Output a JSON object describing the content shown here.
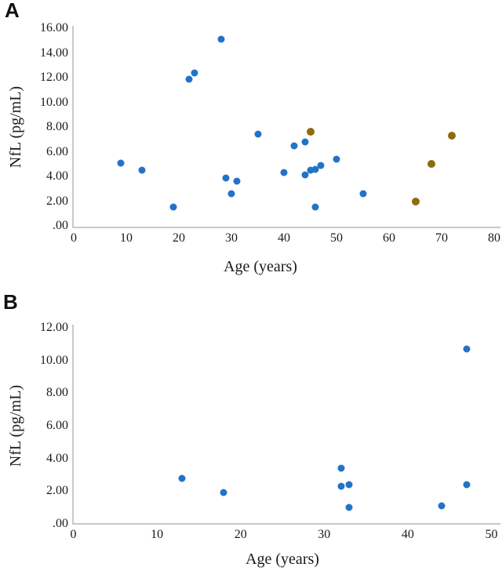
{
  "figure": {
    "background": "#ffffff",
    "panels": [
      {
        "letter": "A"
      },
      {
        "letter": "B"
      }
    ]
  },
  "chart_data": [
    {
      "type": "scatter",
      "panel_letter": "A",
      "title": "",
      "xlabel": "Age (years)",
      "ylabel": "NfL (pg/mL)",
      "xlim": [
        0,
        80
      ],
      "ylim": [
        0,
        16
      ],
      "grid": false,
      "legend_position": "none",
      "axis_color": "#c9c9c9",
      "x_ticks": [
        {
          "v": 0,
          "label": "0"
        },
        {
          "v": 10,
          "label": "10"
        },
        {
          "v": 20,
          "label": "20"
        },
        {
          "v": 30,
          "label": "30"
        },
        {
          "v": 40,
          "label": "40"
        },
        {
          "v": 50,
          "label": "50"
        },
        {
          "v": 60,
          "label": "60"
        },
        {
          "v": 70,
          "label": "70"
        },
        {
          "v": 80,
          "label": "80"
        }
      ],
      "y_ticks": [
        {
          "v": 0,
          "label": ".00"
        },
        {
          "v": 2,
          "label": "2.00"
        },
        {
          "v": 4,
          "label": "4.00"
        },
        {
          "v": 6,
          "label": "6.00"
        },
        {
          "v": 8,
          "label": "8.00"
        },
        {
          "v": 10,
          "label": "10.00"
        },
        {
          "v": 12,
          "label": "12.00"
        },
        {
          "v": 14,
          "label": "14.00"
        },
        {
          "v": 16,
          "label": "16.00"
        }
      ],
      "series": [
        {
          "name": "blue-circles",
          "color": "#2472C8",
          "points": [
            [
              9,
              5.1
            ],
            [
              13,
              4.5
            ],
            [
              19,
              1.5
            ],
            [
              22,
              11.9
            ],
            [
              23,
              12.4
            ],
            [
              28,
              15.1
            ],
            [
              29,
              3.9
            ],
            [
              30,
              2.6
            ],
            [
              31,
              3.6
            ],
            [
              35,
              7.4
            ],
            [
              40,
              4.3
            ],
            [
              42,
              6.5
            ],
            [
              44,
              6.8
            ],
            [
              44,
              4.1
            ],
            [
              45,
              4.5
            ],
            [
              46,
              4.6
            ],
            [
              47,
              4.9
            ],
            [
              50,
              5.4
            ],
            [
              46,
              1.5
            ],
            [
              55,
              2.6
            ]
          ]
        },
        {
          "name": "brown-circles",
          "color": "#8F6C10",
          "points": [
            [
              45,
              7.6
            ],
            [
              65,
              2.0
            ],
            [
              68,
              5.0
            ],
            [
              72,
              7.3
            ]
          ]
        }
      ]
    },
    {
      "type": "scatter",
      "panel_letter": "B",
      "title": "",
      "xlabel": "Age (years)",
      "ylabel": "NfL (pg/mL)",
      "xlim": [
        0,
        50
      ],
      "ylim": [
        0,
        12
      ],
      "grid": false,
      "legend_position": "none",
      "axis_color": "#c9c9c9",
      "x_ticks": [
        {
          "v": 0,
          "label": "0"
        },
        {
          "v": 10,
          "label": "10"
        },
        {
          "v": 20,
          "label": "20"
        },
        {
          "v": 30,
          "label": "30"
        },
        {
          "v": 40,
          "label": "40"
        },
        {
          "v": 50,
          "label": "50"
        }
      ],
      "y_ticks": [
        {
          "v": 0,
          "label": ".00"
        },
        {
          "v": 2,
          "label": "2.00"
        },
        {
          "v": 4,
          "label": "4.00"
        },
        {
          "v": 6,
          "label": "6.00"
        },
        {
          "v": 8,
          "label": "8.00"
        },
        {
          "v": 10,
          "label": "10.00"
        },
        {
          "v": 12,
          "label": "12.00"
        }
      ],
      "series": [
        {
          "name": "blue-circles",
          "color": "#2472C8",
          "points": [
            [
              13,
              2.8
            ],
            [
              18,
              1.9
            ],
            [
              32,
              3.4
            ],
            [
              32,
              2.3
            ],
            [
              33,
              2.4
            ],
            [
              33,
              1.0
            ],
            [
              44,
              1.1
            ],
            [
              47,
              10.7
            ],
            [
              47,
              2.4
            ]
          ]
        }
      ]
    }
  ]
}
